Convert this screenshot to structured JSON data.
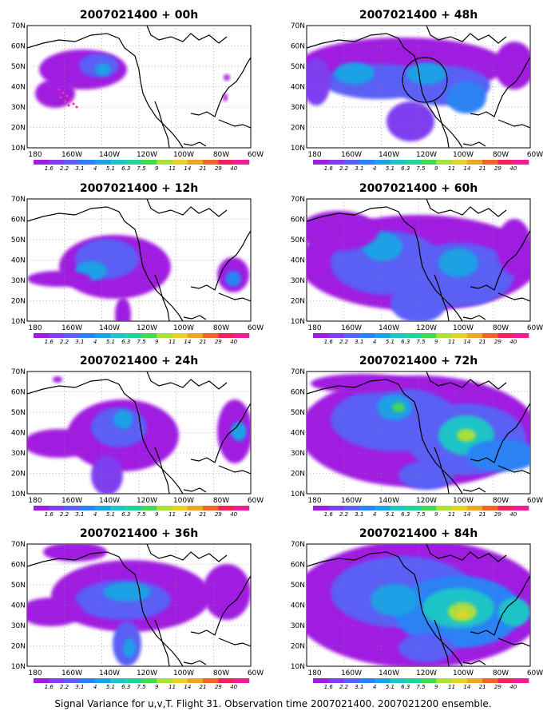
{
  "caption": "Signal Variance for u,v,T. Flight 31. Observation time 2007021400. 2007021200 ensemble.",
  "lat_labels": [
    "70N",
    "60N",
    "50N",
    "40N",
    "30N",
    "20N",
    "10N"
  ],
  "lon_labels": [
    "180",
    "160W",
    "140W",
    "120W",
    "100W",
    "80W",
    "60W"
  ],
  "colorbar": {
    "labels": [
      "1.6",
      "2.2",
      "3.1",
      "4",
      "5.1",
      "6.3",
      "7.5",
      "9",
      "11",
      "14",
      "21",
      "29",
      "40"
    ],
    "colors": [
      "#a01ce0",
      "#7f3cf0",
      "#5a5ff5",
      "#2b82f5",
      "#1aa0e6",
      "#1fc4c8",
      "#1fd49a",
      "#45d855",
      "#a8e03c",
      "#e6d02a",
      "#f0a424",
      "#f06424",
      "#f0245a",
      "#f01e96"
    ]
  },
  "panels": [
    {
      "title": "2007021400 + 00h",
      "lead_hours": 0
    },
    {
      "title": "2007021400 + 48h",
      "lead_hours": 48
    },
    {
      "title": "2007021400 + 12h",
      "lead_hours": 12
    },
    {
      "title": "2007021400 + 60h",
      "lead_hours": 60
    },
    {
      "title": "2007021400 + 24h",
      "lead_hours": 24
    },
    {
      "title": "2007021400 + 72h",
      "lead_hours": 72
    },
    {
      "title": "2007021400 + 36h",
      "lead_hours": 36
    },
    {
      "title": "2007021400 + 84h",
      "lead_hours": 84
    }
  ]
}
